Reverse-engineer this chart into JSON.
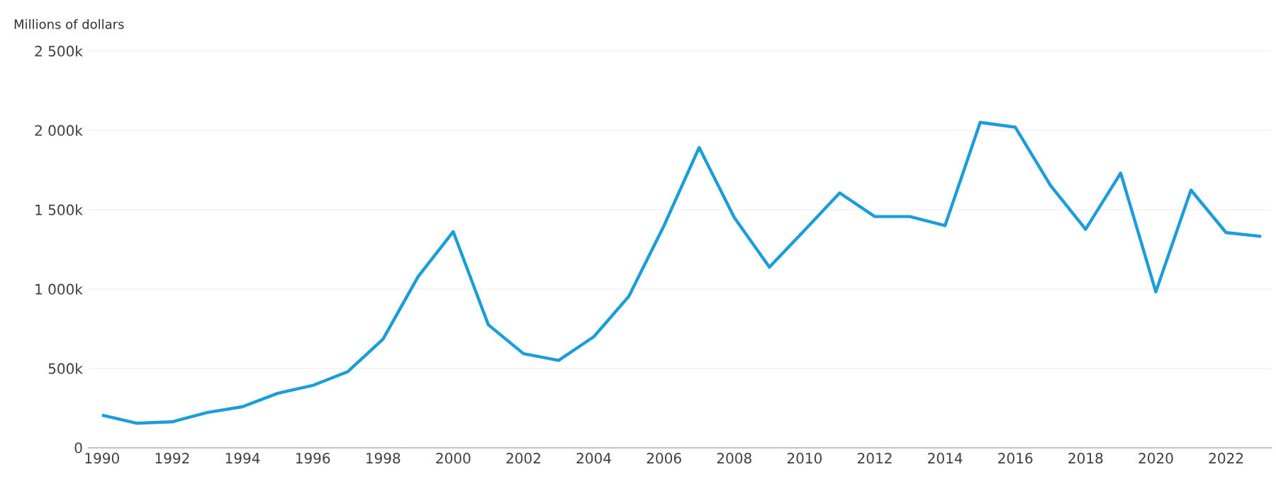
{
  "chart_data": {
    "type": "line",
    "ylabel": "Millions of dollars",
    "x": [
      1990,
      1991,
      1992,
      1993,
      1994,
      1995,
      1996,
      1997,
      1998,
      1999,
      2000,
      2001,
      2002,
      2003,
      2004,
      2005,
      2006,
      2007,
      2008,
      2009,
      2010,
      2011,
      2012,
      2013,
      2014,
      2015,
      2016,
      2017,
      2018,
      2019,
      2020,
      2021,
      2022,
      2023
    ],
    "series": [
      {
        "color": "#1a9dd9",
        "values": [
          206000,
          155000,
          164000,
          223000,
          259000,
          343000,
          393000,
          480000,
          685000,
          1079000,
          1362000,
          775000,
          593000,
          551000,
          700000,
          955000,
          1400000,
          1892000,
          1451000,
          1138000,
          1371000,
          1606000,
          1457000,
          1457000,
          1400000,
          2050000,
          2020000,
          1654000,
          1377000,
          1731000,
          983000,
          1624000,
          1356000,
          1332000
        ]
      }
    ],
    "xlim": [
      1989.6,
      2023.3
    ],
    "ylim": [
      0,
      2500000
    ],
    "xticks": [
      1990,
      1992,
      1994,
      1996,
      1998,
      2000,
      2002,
      2004,
      2006,
      2008,
      2010,
      2012,
      2014,
      2016,
      2018,
      2020,
      2022
    ],
    "yticks": [
      0,
      {
        "value": 500000,
        "label": "500k"
      },
      {
        "value": 1000000,
        "label": "1 000k"
      },
      {
        "value": 1500000,
        "label": "1 500k"
      },
      {
        "value": 2000000,
        "label": "2 000k"
      },
      {
        "value": 2500000,
        "label": "2 500k"
      }
    ],
    "grid": "y",
    "marker": "none",
    "line_style": "solid"
  }
}
